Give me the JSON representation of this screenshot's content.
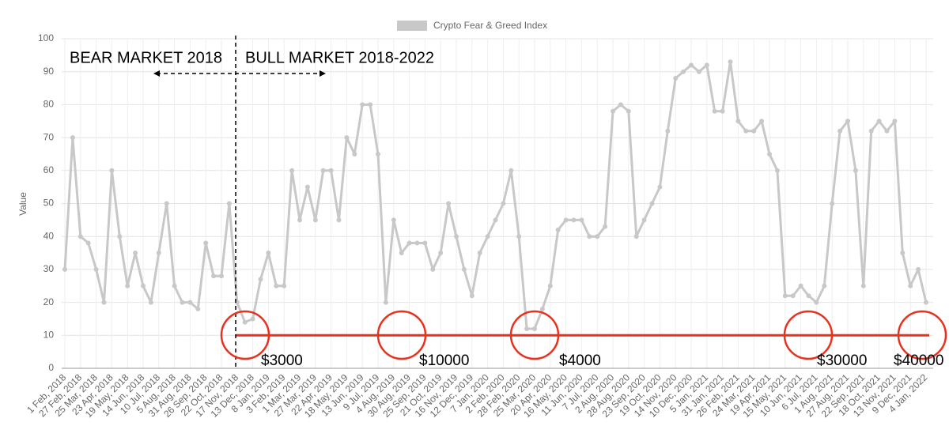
{
  "chart_data": {
    "type": "line",
    "legend": "Crypto Fear & Greed Index",
    "y_label": "Value",
    "color": "#c8c8c8",
    "ylim": [
      0,
      100
    ],
    "yticks": [
      0,
      10,
      20,
      30,
      40,
      50,
      60,
      70,
      80,
      90,
      100
    ],
    "grid": true,
    "categories": [
      "1 Feb, 2018",
      null,
      "27 Feb, 2018",
      null,
      "25 Mar, 2018",
      null,
      "23 Apr, 2018",
      null,
      "19 May, 2018",
      null,
      "14 Jun, 2018",
      null,
      "10 Jul, 2018",
      null,
      "5 Aug, 2018",
      null,
      "31 Aug, 2018",
      null,
      "26 Sep, 2018",
      null,
      "22 Oct, 2018",
      null,
      "17 Nov, 2018",
      null,
      "13 Dec, 2018",
      null,
      "8 Jan, 2019",
      null,
      "3 Feb, 2019",
      null,
      "1 Mar, 2019",
      null,
      "27 Mar, 2019",
      null,
      "22 Apr, 2019",
      null,
      "18 May, 2019",
      null,
      "13 Jun, 2019",
      null,
      "9 Jul, 2019",
      null,
      "4 Aug, 2019",
      null,
      "30 Aug, 2019",
      null,
      "25 Sep, 2019",
      null,
      "21 Oct, 2019",
      null,
      "16 Nov, 2019",
      null,
      "12 Dec, 2019",
      null,
      "7 Jan, 2020",
      null,
      "2 Feb, 2020",
      null,
      "28 Feb, 2020",
      null,
      "25 Mar, 2020",
      null,
      "20 Apr, 2020",
      null,
      "16 May, 2020",
      null,
      "11 Jun, 2020",
      null,
      "7 Jul, 2020",
      null,
      "2 Aug, 2020",
      null,
      "28 Aug, 2020",
      null,
      "23 Sep, 2020",
      null,
      "19 Oct, 2020",
      null,
      "14 Nov, 2020",
      null,
      "10 Dec, 2020",
      null,
      "5 Jan, 2021",
      null,
      "31 Jan, 2021",
      null,
      "26 Feb, 2021",
      null,
      "24 Mar, 2021",
      null,
      "19 Apr, 2021",
      null,
      "15 May, 2021",
      null,
      "10 Jun, 2021",
      null,
      "6 Jul, 2021",
      null,
      "1 Aug, 2021",
      null,
      "27 Aug, 2021",
      null,
      "22 Sep, 2021",
      null,
      "18 Oct, 2021",
      null,
      "13 Nov, 2021",
      null,
      "9 Dec, 2021",
      null,
      "4 Jan, 2022"
    ],
    "values": [
      30,
      70,
      40,
      38,
      30,
      20,
      60,
      40,
      25,
      35,
      25,
      20,
      35,
      50,
      25,
      20,
      20,
      18,
      38,
      28,
      28,
      50,
      20,
      14,
      15,
      27,
      35,
      25,
      25,
      60,
      45,
      55,
      45,
      60,
      60,
      45,
      70,
      65,
      80,
      80,
      65,
      20,
      45,
      35,
      38,
      38,
      38,
      30,
      35,
      50,
      40,
      30,
      22,
      35,
      40,
      45,
      50,
      60,
      40,
      12,
      12,
      18,
      25,
      42,
      45,
      45,
      45,
      40,
      40,
      43,
      78,
      80,
      78,
      40,
      45,
      50,
      55,
      72,
      88,
      90,
      92,
      90,
      92,
      78,
      78,
      93,
      75,
      72,
      72,
      75,
      65,
      60,
      22,
      22,
      25,
      22,
      20,
      25,
      50,
      72,
      75,
      60,
      25,
      72,
      75,
      72,
      75,
      35,
      25,
      30,
      20
    ],
    "reference_line": {
      "value": 10,
      "color": "#e8321e"
    },
    "annotations": [
      "BEAR MARKET 2018",
      "BULL MARKET 2018-2022",
      "$3000",
      "$10000",
      "$4000",
      "$30000",
      "$40000"
    ]
  }
}
